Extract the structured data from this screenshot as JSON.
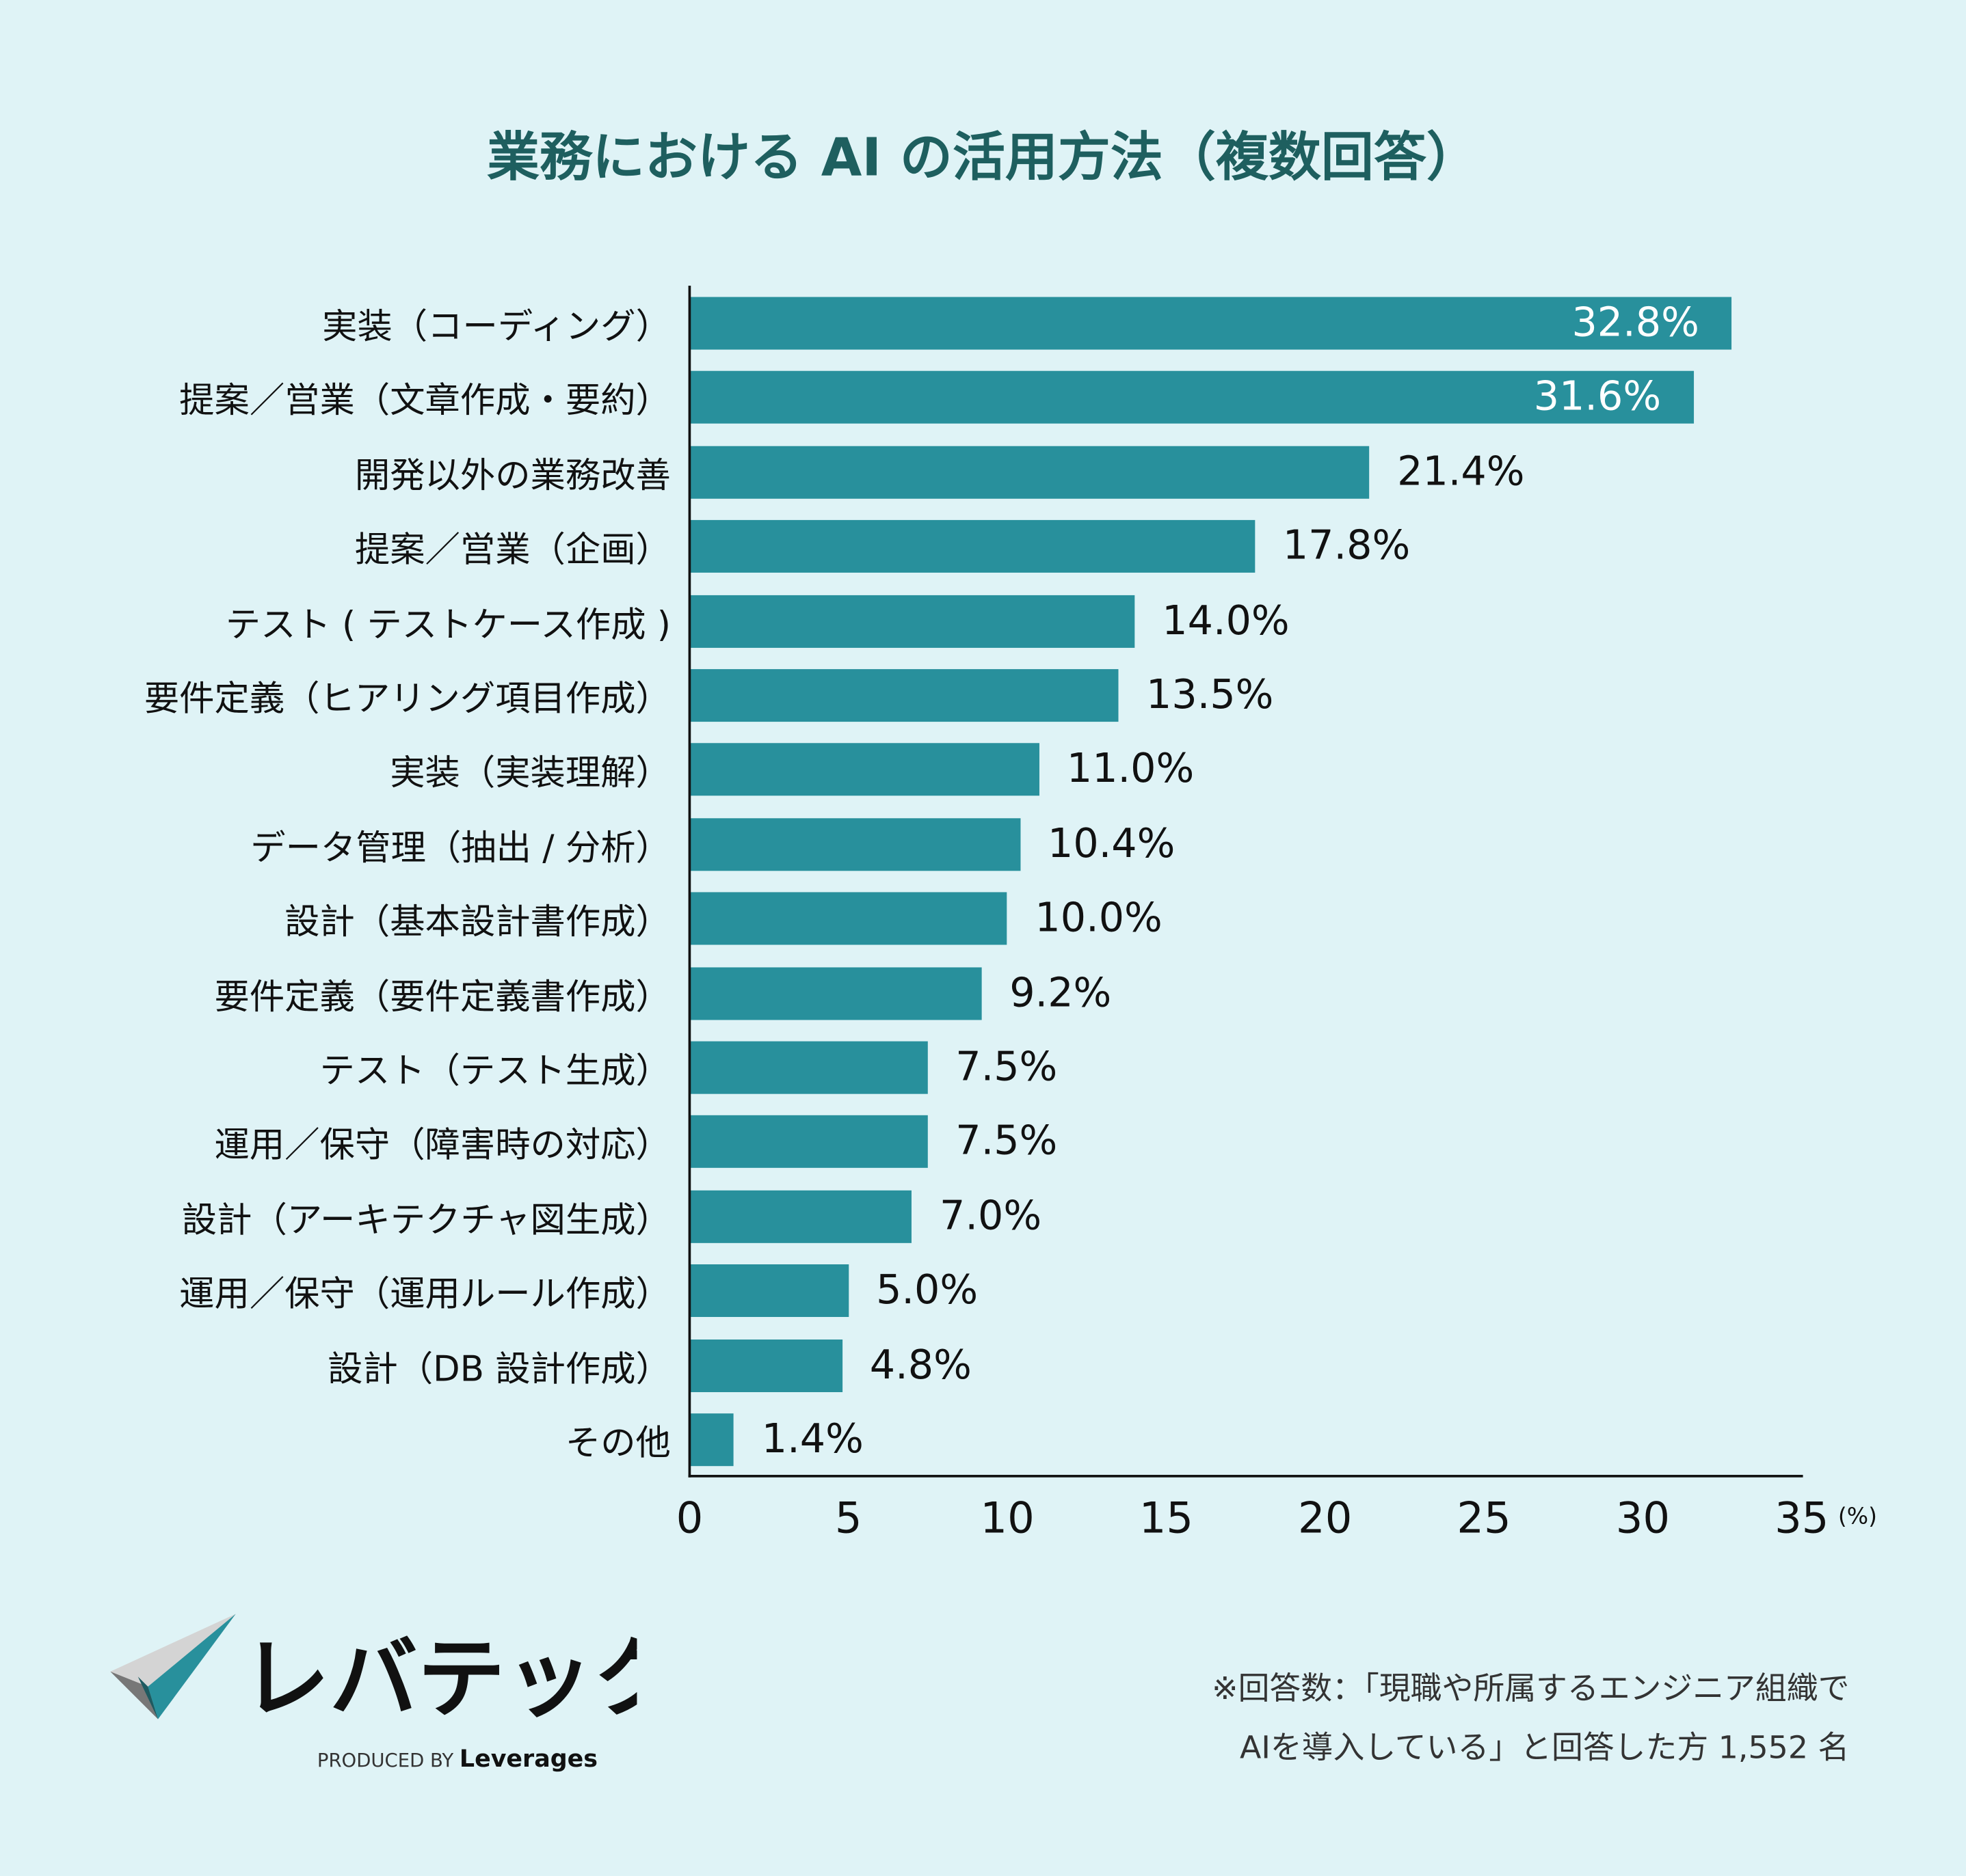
{
  "colors": {
    "background": "#dff3f6",
    "bar": "#28909c",
    "title": "#1e5f5f"
  },
  "chart_data": {
    "type": "bar",
    "orientation": "horizontal",
    "title": "業務における AI の活用方法（複数回答）",
    "categories": [
      "実装（コーディング）",
      "提案／営業（文章作成・要約）",
      "開発以外の業務改善",
      "提案／営業（企画）",
      "テスト ( テストケース作成 )",
      "要件定義（ヒアリング項目作成）",
      "実装（実装理解）",
      "データ管理（抽出 / 分析）",
      "設計（基本設計書作成）",
      "要件定義（要件定義書作成）",
      "テスト（テスト生成）",
      "運用／保守（障害時の対応）",
      "設計（アーキテクチャ図生成）",
      "運用／保守（運用ルール作成）",
      "設計（DB 設計作成）",
      "その他"
    ],
    "values": [
      32.8,
      31.6,
      21.4,
      17.8,
      14.0,
      13.5,
      11.0,
      10.4,
      10.0,
      9.2,
      7.5,
      7.5,
      7.0,
      5.0,
      4.8,
      1.4
    ],
    "data_labels": [
      "32.8%",
      "31.6%",
      "21.4%",
      "17.8%",
      "14.0%",
      "13.5%",
      "11.0%",
      "10.4%",
      "10.0%",
      "9.2%",
      "7.5%",
      "7.5%",
      "7.0%",
      "5.0%",
      "4.8%",
      "1.4%"
    ],
    "xlim": [
      0,
      35
    ],
    "xticks": [
      "0",
      "5",
      "10",
      "15",
      "20",
      "25",
      "30",
      "35"
    ],
    "xunit": "(%)",
    "grid": false
  },
  "footer": {
    "note_line1": "※回答数：「現職や所属するエンジニア組織で",
    "note_line2": "AIを導入している」と回答した方 1,552 名",
    "logo_text": "レバテック",
    "produced_by": "PRODUCED BY Leverages"
  }
}
